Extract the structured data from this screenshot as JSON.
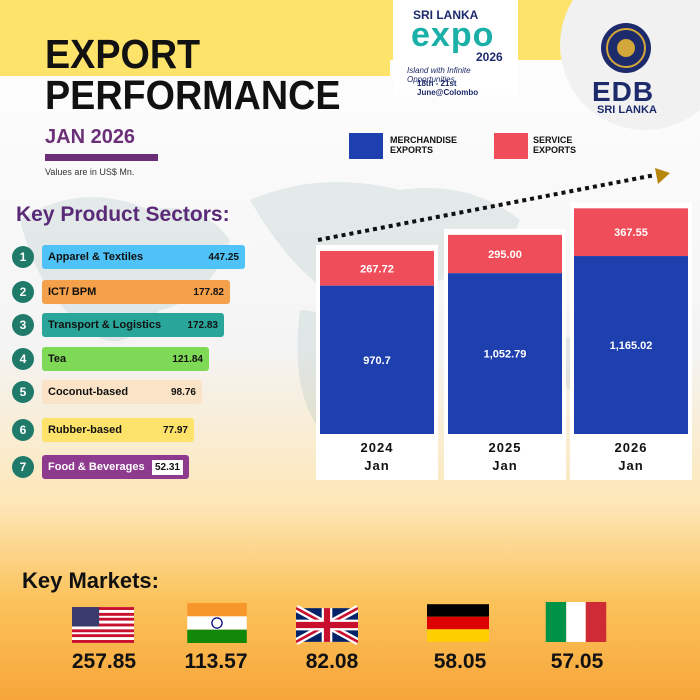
{
  "header": {
    "title_line1": "EXPORT",
    "title_line2": "PERFORMANCE",
    "period": "JAN 2026",
    "note": "Values are in US$ Mn."
  },
  "expo_logo": {
    "top_text": "SRI LANKA",
    "word": "expo",
    "year": "2026",
    "tagline": "Island with Infinite Opportunities",
    "dates": "18th - 21st June@Colombo"
  },
  "edb_logo": {
    "name": "EDB",
    "sub": "SRI LANKA"
  },
  "sectors": {
    "title": "Key Product Sectors:",
    "items": [
      {
        "num": "1",
        "label": "Apparel & Textiles",
        "value": "447.25",
        "color": "#4fc3f7"
      },
      {
        "num": "2",
        "label": "ICT/ BPM",
        "value": "177.82",
        "color": "#f5a04a"
      },
      {
        "num": "3",
        "label": "Transport & Logistics",
        "value": "172.83",
        "color": "#2aa59a"
      },
      {
        "num": "4",
        "label": "Tea",
        "value": "121.84",
        "color": "#7ed957"
      },
      {
        "num": "5",
        "label": "Coconut-based",
        "value": "98.76",
        "color": "#fbe3c8"
      },
      {
        "num": "6",
        "label": "Rubber-based",
        "value": "77.97",
        "color": "#fde36a"
      },
      {
        "num": "7",
        "label": "Food & Beverages",
        "value": "52.31",
        "color": "#8e3b8f"
      }
    ]
  },
  "legend": {
    "merch_line1": "MERCHANDISE",
    "merch_line2": "EXPORTS",
    "service_line1": "SERVICE",
    "service_line2": "EXPORTS",
    "merch_color": "#1e3fae",
    "service_color": "#f04d5a"
  },
  "chart_data": {
    "type": "bar",
    "stacked": true,
    "categories": [
      "2024 Jan",
      "2025 Jan",
      "2026 Jan"
    ],
    "category_years": [
      "2024",
      "2025",
      "2026"
    ],
    "category_months": [
      "Jan",
      "Jan",
      "Jan"
    ],
    "series": [
      {
        "name": "MERCHANDISE EXPORTS",
        "values": [
          970.7,
          1052.79,
          1165.02
        ],
        "labels": [
          "970.7",
          "1,052.79",
          "1,165.02"
        ]
      },
      {
        "name": "SERVICE EXPORTS",
        "values": [
          267.72,
          295.0,
          367.55
        ],
        "labels": [
          "267.72",
          "295.00",
          "367.55"
        ]
      }
    ],
    "title": "",
    "xlabel": "",
    "ylabel": "",
    "units": "US$ Mn"
  },
  "markets": {
    "title": "Key Markets:",
    "items": [
      {
        "flag": "usa-flag",
        "value": "257.85"
      },
      {
        "flag": "india-flag",
        "value": "113.57"
      },
      {
        "flag": "uk-flag",
        "value": "82.08"
      },
      {
        "flag": "germany-flag",
        "value": "58.05"
      },
      {
        "flag": "italy-flag",
        "value": "57.05"
      }
    ]
  }
}
